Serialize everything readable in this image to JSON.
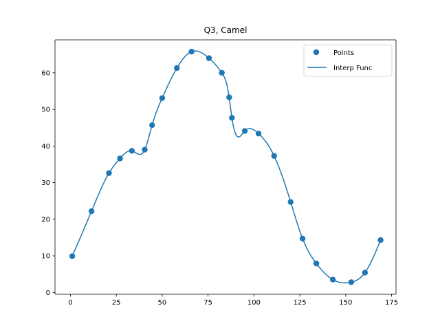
{
  "chart_data": {
    "type": "scatter",
    "title": "Q3, Camel",
    "xlabel": "",
    "ylabel": "",
    "xlim": [
      -8.4,
      177.4
    ],
    "ylim": [
      -0.5,
      69.0
    ],
    "xticks": [
      0,
      25,
      50,
      75,
      100,
      125,
      150,
      175
    ],
    "yticks": [
      0,
      10,
      20,
      30,
      40,
      50,
      60
    ],
    "grid": false,
    "legend_position": "top-right",
    "colors": {
      "series": "#1f77b4",
      "axis": "#000000",
      "legend_border": "#cccccc"
    },
    "series": [
      {
        "name": "Points",
        "kind": "scatter",
        "x": [
          1,
          11.5,
          21,
          27,
          33.5,
          40.5,
          44.5,
          50,
          58,
          66,
          75.5,
          82.5,
          86.5,
          88,
          95,
          102.5,
          111,
          120,
          126.5,
          134,
          143,
          153,
          160.5,
          169
        ],
        "y": [
          9.9,
          22.2,
          32.6,
          36.6,
          38.7,
          39.0,
          45.7,
          53.1,
          61.3,
          65.8,
          64.0,
          60.0,
          53.3,
          47.7,
          44.1,
          43.4,
          37.3,
          24.7,
          14.7,
          7.9,
          3.5,
          2.8,
          5.4,
          14.3
        ]
      },
      {
        "name": "Interp Func",
        "kind": "line",
        "interpolation": "cubic",
        "from_series": "Points"
      }
    ]
  }
}
